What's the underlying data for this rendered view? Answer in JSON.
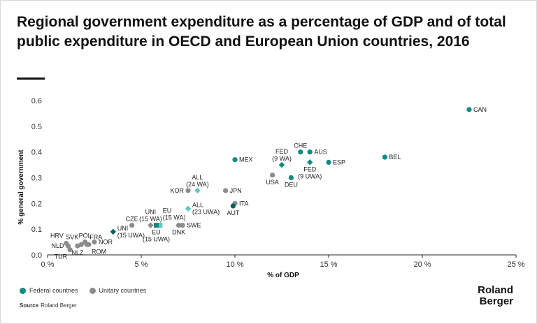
{
  "title": "Regional government expenditure as a percentage of GDP and of total public expenditure in OECD and European Union countries, 2016",
  "legend": {
    "federal_label": "Federal countries",
    "unitary_label": "Unitary countries"
  },
  "source": {
    "label": "Source",
    "text": "Roland Berger"
  },
  "logo": {
    "line1": "Roland",
    "line2": "Berger"
  },
  "colors": {
    "federal": "#0e8a82",
    "unitary": "#8c8c8c",
    "aggregate": "#0e5e58",
    "aggregate_light": "#5ec9c0",
    "axis": "#222222"
  },
  "chart_data": {
    "type": "scatter",
    "xlabel": "% of GDP",
    "ylabel": "% general government",
    "xlim": [
      0,
      25
    ],
    "ylim": [
      0,
      0.6
    ],
    "x_ticks": [
      {
        "value": 0,
        "label": "0 %"
      },
      {
        "value": 5,
        "label": "5 %"
      },
      {
        "value": 10,
        "label": "10 %"
      },
      {
        "value": 15,
        "label": "15 %"
      },
      {
        "value": 20,
        "label": "20 %"
      },
      {
        "value": 25,
        "label": "25 %"
      }
    ],
    "y_ticks": [
      {
        "value": 0,
        "label": "0.0"
      },
      {
        "value": 0.1,
        "label": "0.1"
      },
      {
        "value": 0.2,
        "label": "0.2"
      },
      {
        "value": 0.3,
        "label": "0.3"
      },
      {
        "value": 0.4,
        "label": "0.4"
      },
      {
        "value": 0.5,
        "label": "0.5"
      },
      {
        "value": 0.6,
        "label": "0.6"
      }
    ],
    "points": [
      {
        "label": "CAN",
        "x": 22.5,
        "y": 0.565,
        "group": "federal",
        "marker": "circle",
        "label_pos": "right"
      },
      {
        "label": "BEL",
        "x": 18.0,
        "y": 0.38,
        "group": "federal",
        "marker": "circle",
        "label_pos": "right"
      },
      {
        "label": "AUS",
        "x": 14.0,
        "y": 0.4,
        "group": "federal",
        "marker": "circle",
        "label_pos": "right"
      },
      {
        "label": "CHE",
        "x": 13.5,
        "y": 0.4,
        "group": "federal",
        "marker": "circle",
        "label_pos": "above"
      },
      {
        "label": "ESP",
        "x": 15.0,
        "y": 0.36,
        "group": "federal",
        "marker": "circle",
        "label_pos": "right"
      },
      {
        "label": "FED\n(9 WA)",
        "x": 12.5,
        "y": 0.35,
        "group": "federal",
        "marker": "diamond",
        "label_pos": "above"
      },
      {
        "label": "FED\n(9 UWA)",
        "x": 14.0,
        "y": 0.36,
        "group": "federal",
        "marker": "diamond",
        "label_pos": "below"
      },
      {
        "label": "DEU",
        "x": 13.0,
        "y": 0.3,
        "group": "federal",
        "marker": "circle",
        "label_pos": "below"
      },
      {
        "label": "MEX",
        "x": 10.0,
        "y": 0.37,
        "group": "federal",
        "marker": "circle",
        "label_pos": "right"
      },
      {
        "label": "USA",
        "x": 12.0,
        "y": 0.31,
        "group": "unitary",
        "marker": "circle",
        "label_pos": "below"
      },
      {
        "label": "JPN",
        "x": 9.5,
        "y": 0.25,
        "group": "unitary",
        "marker": "circle",
        "label_pos": "right"
      },
      {
        "label": "KOR",
        "x": 7.5,
        "y": 0.25,
        "group": "unitary",
        "marker": "circle",
        "label_pos": "left"
      },
      {
        "label": "ALL\n(24 WA)",
        "x": 8.0,
        "y": 0.25,
        "group": "aggregate_light",
        "marker": "diamond",
        "label_pos": "above"
      },
      {
        "label": "ITA",
        "x": 10.0,
        "y": 0.2,
        "group": "unitary",
        "marker": "circle",
        "label_pos": "right"
      },
      {
        "label": "AUT",
        "x": 9.9,
        "y": 0.19,
        "group": "aggregate",
        "marker": "circle",
        "label_pos": "below"
      },
      {
        "label": "ALL\n(23 UWA)",
        "x": 7.5,
        "y": 0.18,
        "group": "aggregate_light",
        "marker": "diamond",
        "label_pos": "right"
      },
      {
        "label": "EU\n(15 WA)",
        "x": 6.0,
        "y": 0.115,
        "group": "aggregate_light",
        "marker": "square",
        "label_pos": "above-right"
      },
      {
        "label": "EU\n(15 UWA)",
        "x": 5.8,
        "y": 0.115,
        "group": "federal",
        "marker": "square",
        "label_pos": "below"
      },
      {
        "label": "UNI\n(15 WA)",
        "x": 5.5,
        "y": 0.115,
        "group": "unitary",
        "marker": "diamond",
        "label_pos": "above"
      },
      {
        "label": "SWE",
        "x": 7.2,
        "y": 0.115,
        "group": "unitary",
        "marker": "circle",
        "label_pos": "right"
      },
      {
        "label": "DNK",
        "x": 7.0,
        "y": 0.115,
        "group": "unitary",
        "marker": "circle",
        "label_pos": "below"
      },
      {
        "label": "CZE",
        "x": 4.5,
        "y": 0.115,
        "group": "unitary",
        "marker": "circle",
        "label_pos": "above"
      },
      {
        "label": "UNI\n(15 UWA)",
        "x": 3.5,
        "y": 0.09,
        "group": "aggregate",
        "marker": "diamond",
        "label_pos": "right"
      },
      {
        "label": "POL",
        "x": 2.0,
        "y": 0.05,
        "group": "unitary",
        "marker": "circle",
        "label_pos": "above"
      },
      {
        "label": "FRA",
        "x": 2.1,
        "y": 0.04,
        "group": "unitary",
        "marker": "circle",
        "label_pos": "above-right"
      },
      {
        "label": "NOR",
        "x": 2.5,
        "y": 0.05,
        "group": "unitary",
        "marker": "circle",
        "label_pos": "right"
      },
      {
        "label": "ROM",
        "x": 2.2,
        "y": 0.04,
        "group": "unitary",
        "marker": "circle",
        "label_pos": "below-right"
      },
      {
        "label": "SVK",
        "x": 1.8,
        "y": 0.04,
        "group": "unitary",
        "marker": "circle",
        "label_pos": "above-left"
      },
      {
        "label": "NLZ",
        "x": 1.6,
        "y": 0.035,
        "group": "unitary",
        "marker": "circle",
        "label_pos": "below"
      },
      {
        "label": "HRV",
        "x": 1.0,
        "y": 0.045,
        "group": "unitary",
        "marker": "circle",
        "label_pos": "above-left"
      },
      {
        "label": "NLD",
        "x": 1.1,
        "y": 0.035,
        "group": "unitary",
        "marker": "circle",
        "label_pos": "left"
      },
      {
        "label": "TUR",
        "x": 1.2,
        "y": 0.02,
        "group": "unitary",
        "marker": "circle",
        "label_pos": "below-left"
      }
    ]
  }
}
